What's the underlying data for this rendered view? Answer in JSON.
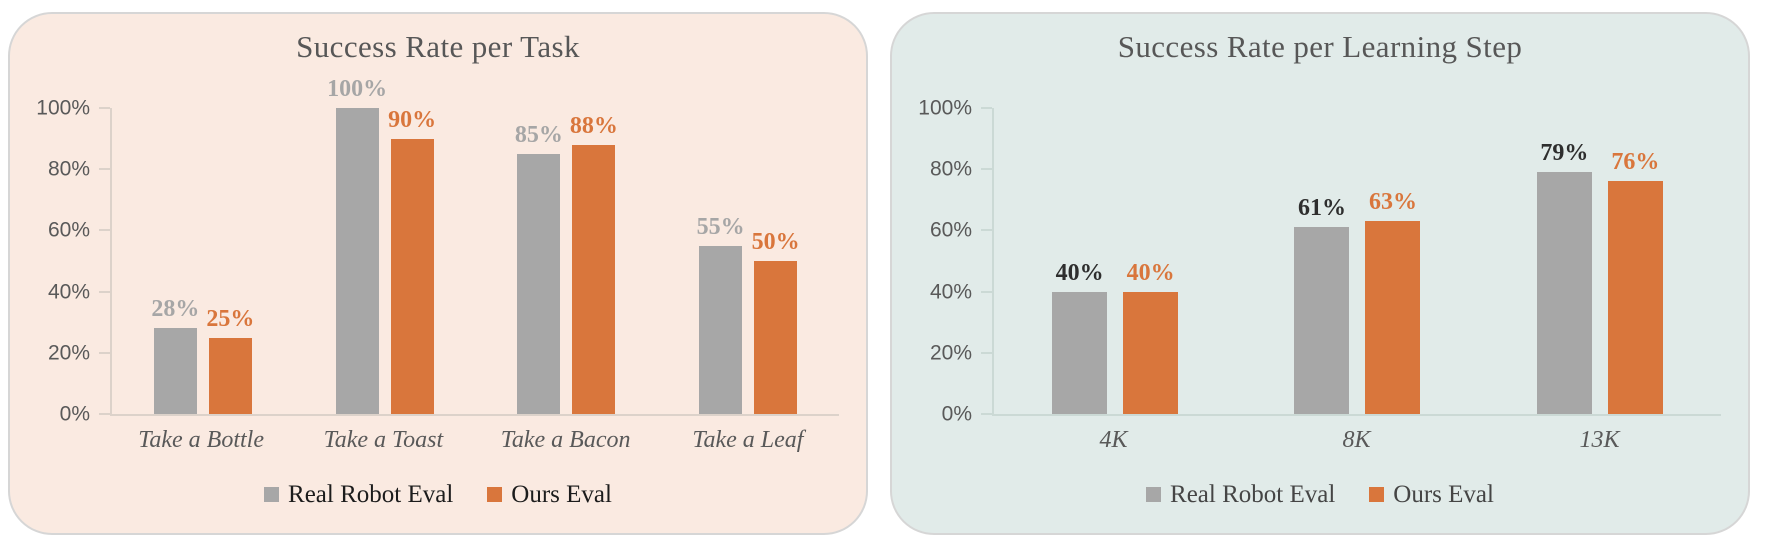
{
  "page": {
    "background": "#FFFFFF"
  },
  "chart_data": [
    {
      "type": "bar",
      "title": "Success Rate per Task",
      "categories": [
        "Take a Bottle",
        "Take a Toast",
        "Take a Bacon",
        "Take a Leaf"
      ],
      "series": [
        {
          "name": "Real Robot Eval",
          "values": [
            28,
            100,
            85,
            55
          ],
          "color": "#A7A7A7",
          "value_label_color": "#A6A6A6"
        },
        {
          "name": "Ours Eval",
          "values": [
            25,
            90,
            88,
            50
          ],
          "color": "#D9763C",
          "value_label_color": "#D9763C"
        }
      ],
      "value_label_suffix": "%",
      "y_ticks": [
        "100%",
        "80%",
        "60%",
        "40%",
        "20%",
        "0%"
      ],
      "ylim": [
        0,
        100
      ],
      "grid": false,
      "legend_position": "bottom",
      "card_background": "#FAEAE1",
      "axis_color": "#DCD2CA",
      "title_color": "#575757",
      "tick_label_color": "#595959",
      "category_label_color": "#595959",
      "legend_text_color": "#1C1C1C"
    },
    {
      "type": "bar",
      "title": "Success Rate per Learning Step",
      "categories": [
        "4K",
        "8K",
        "13K"
      ],
      "series": [
        {
          "name": "Real Robot Eval",
          "values": [
            40,
            61,
            79
          ],
          "color": "#A7A7A7",
          "value_label_color": "#2E2E2E"
        },
        {
          "name": "Ours Eval",
          "values": [
            40,
            63,
            76
          ],
          "color": "#D9763C",
          "value_label_color": "#D9763C"
        }
      ],
      "value_label_suffix": "%",
      "y_ticks": [
        "100%",
        "80%",
        "60%",
        "40%",
        "20%",
        "0%"
      ],
      "ylim": [
        0,
        100
      ],
      "grid": false,
      "legend_position": "bottom",
      "card_background": "#E1EBE9",
      "axis_color": "#CBD9D5",
      "title_color": "#575757",
      "tick_label_color": "#595959",
      "category_label_color": "#595959",
      "legend_text_color": "#454545"
    }
  ]
}
